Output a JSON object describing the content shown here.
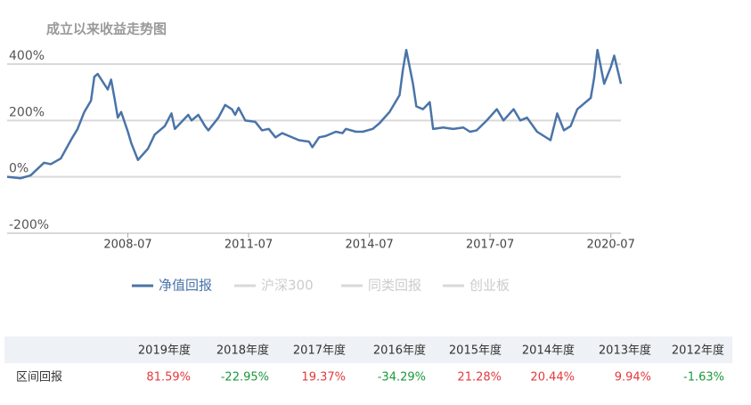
{
  "chart_data": {
    "type": "line",
    "title": "成立以来收益走势图",
    "x": [
      "2005-07",
      "2005-11",
      "2006-02",
      "2006-06",
      "2006-08",
      "2006-11",
      "2007-02",
      "2007-04",
      "2007-06",
      "2007-08",
      "2007-09",
      "2007-10",
      "2008-01",
      "2008-02",
      "2008-03",
      "2008-04",
      "2008-05",
      "2008-07",
      "2008-08",
      "2008-10",
      "2009-01",
      "2009-03",
      "2009-06",
      "2009-08",
      "2009-09",
      "2010-01",
      "2010-02",
      "2010-04",
      "2010-06",
      "2010-07",
      "2010-10",
      "2010-12",
      "2011-02",
      "2011-03",
      "2011-04",
      "2011-06",
      "2011-09",
      "2011-11",
      "2012-01",
      "2012-03",
      "2012-05",
      "2012-07",
      "2012-10",
      "2013-01",
      "2013-02",
      "2013-04",
      "2013-06",
      "2013-09",
      "2013-11",
      "2013-12",
      "2014-03",
      "2014-05",
      "2014-08",
      "2014-10",
      "2015-01",
      "2015-04",
      "2015-05",
      "2015-06",
      "2015-08",
      "2015-09",
      "2015-11",
      "2016-01",
      "2016-02",
      "2016-05",
      "2016-08",
      "2016-11",
      "2017-01",
      "2017-03",
      "2017-06",
      "2017-09",
      "2017-11",
      "2018-02",
      "2018-04",
      "2018-06",
      "2018-09",
      "2019-01",
      "2019-03",
      "2019-05",
      "2019-07",
      "2019-09",
      "2020-01",
      "2020-02",
      "2020-03",
      "2020-05",
      "2020-07",
      "2020-08",
      "2020-10"
    ],
    "series": [
      {
        "name": "净值回报",
        "color": "#4a74a8",
        "values": [
          0,
          -5,
          5,
          50,
          45,
          65,
          130,
          170,
          230,
          270,
          355,
          365,
          310,
          345,
          280,
          210,
          230,
          160,
          120,
          60,
          100,
          150,
          180,
          225,
          170,
          220,
          200,
          220,
          180,
          165,
          210,
          255,
          240,
          220,
          245,
          200,
          195,
          165,
          170,
          140,
          155,
          145,
          130,
          125,
          105,
          140,
          145,
          160,
          155,
          170,
          160,
          160,
          170,
          190,
          230,
          290,
          380,
          450,
          330,
          250,
          240,
          265,
          170,
          175,
          170,
          175,
          160,
          165,
          200,
          240,
          200,
          240,
          200,
          210,
          160,
          130,
          225,
          165,
          180,
          240,
          280,
          350,
          450,
          330,
          390,
          430,
          330
        ]
      },
      {
        "name": "沪深300",
        "color": "#d9d9d9",
        "hidden": true
      },
      {
        "name": "同类回报",
        "color": "#d9d9d9",
        "hidden": true
      },
      {
        "name": "创业板",
        "color": "#d9d9d9",
        "hidden": true
      }
    ],
    "xlim": [
      "2005-07",
      "2020-10"
    ],
    "xticks": [
      "2008-07",
      "2011-07",
      "2014-07",
      "2017-07",
      "2020-07"
    ],
    "ylim": [
      -200,
      400
    ],
    "yticks": [
      {
        "value": 400,
        "label": "400%"
      },
      {
        "value": 200,
        "label": "200%"
      },
      {
        "value": 0,
        "label": "0%"
      },
      {
        "value": -200,
        "label": "-200%"
      }
    ],
    "grid": true
  },
  "table": {
    "row_label": "区间回报",
    "columns": [
      "2019年度",
      "2018年度",
      "2017年度",
      "2016年度",
      "2015年度",
      "2014年度",
      "2013年度",
      "2012年度"
    ],
    "values": [
      "81.59%",
      "-22.95%",
      "19.37%",
      "-34.29%",
      "21.28%",
      "20.44%",
      "9.94%",
      "-1.63%"
    ],
    "up_color": "#e4393c",
    "down_color": "#1a9a3a"
  }
}
